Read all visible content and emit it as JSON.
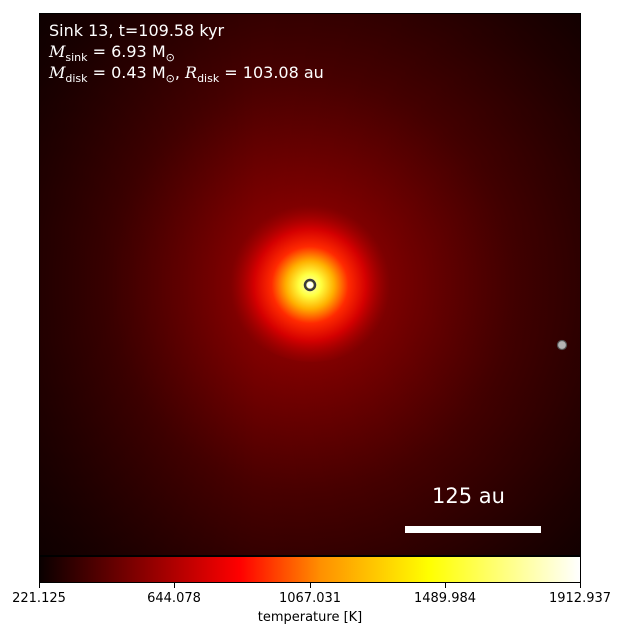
{
  "chart_data": {
    "type": "heatmap",
    "colormap": "hot",
    "annotations": {
      "line1": "Sink 13, t=109.58 kyr",
      "m_sink_symbol": "M",
      "m_sink_sub": "sink",
      "m_sink_value": " = 6.93 M",
      "m_sink_sun_sub": "⊙",
      "m_disk_symbol": "M",
      "m_disk_sub": "disk",
      "m_disk_value": " = 0.43 M",
      "m_disk_sun_sub": "⊙",
      "r_disk_prefix": ", ",
      "r_disk_symbol": "R",
      "r_disk_sub": "disk",
      "r_disk_value": " = 103.08 au"
    },
    "scale_bar": {
      "label": "125 au",
      "length_au": 125
    },
    "colorbar": {
      "label": "temperature [K]",
      "min": 221.125,
      "max": 1912.937,
      "ticks": [
        "221.125",
        "644.078",
        "1067.031",
        "1489.984",
        "1912.937"
      ]
    },
    "sinks": [
      {
        "role": "central"
      },
      {
        "role": "companion"
      }
    ]
  }
}
